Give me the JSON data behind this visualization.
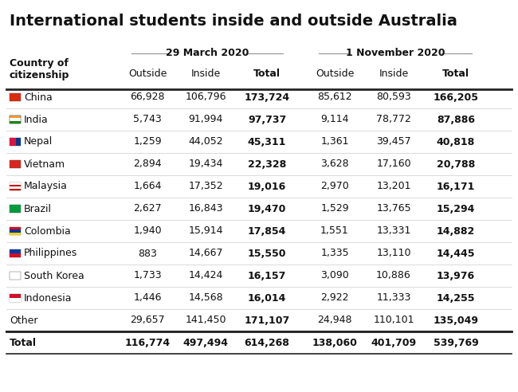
{
  "title": "International students inside and outside Australia",
  "rows": [
    {
      "country": "China",
      "has_flag": true,
      "m1_out": "66,928",
      "m1_in": "106,796",
      "m1_tot": "173,724",
      "m2_out": "85,612",
      "m2_in": "80,593",
      "m2_tot": "166,205"
    },
    {
      "country": "India",
      "has_flag": true,
      "m1_out": "5,743",
      "m1_in": "91,994",
      "m1_tot": "97,737",
      "m2_out": "9,114",
      "m2_in": "78,772",
      "m2_tot": "87,886"
    },
    {
      "country": "Nepal",
      "has_flag": true,
      "m1_out": "1,259",
      "m1_in": "44,052",
      "m1_tot": "45,311",
      "m2_out": "1,361",
      "m2_in": "39,457",
      "m2_tot": "40,818"
    },
    {
      "country": "Vietnam",
      "has_flag": true,
      "m1_out": "2,894",
      "m1_in": "19,434",
      "m1_tot": "22,328",
      "m2_out": "3,628",
      "m2_in": "17,160",
      "m2_tot": "20,788"
    },
    {
      "country": "Malaysia",
      "has_flag": true,
      "m1_out": "1,664",
      "m1_in": "17,352",
      "m1_tot": "19,016",
      "m2_out": "2,970",
      "m2_in": "13,201",
      "m2_tot": "16,171"
    },
    {
      "country": "Brazil",
      "has_flag": true,
      "m1_out": "2,627",
      "m1_in": "16,843",
      "m1_tot": "19,470",
      "m2_out": "1,529",
      "m2_in": "13,765",
      "m2_tot": "15,294"
    },
    {
      "country": "Colombia",
      "has_flag": true,
      "m1_out": "1,940",
      "m1_in": "15,914",
      "m1_tot": "17,854",
      "m2_out": "1,551",
      "m2_in": "13,331",
      "m2_tot": "14,882"
    },
    {
      "country": "Philippines",
      "has_flag": true,
      "m1_out": "883",
      "m1_in": "14,667",
      "m1_tot": "15,550",
      "m2_out": "1,335",
      "m2_in": "13,110",
      "m2_tot": "14,445"
    },
    {
      "country": "South Korea",
      "has_flag": true,
      "m1_out": "1,733",
      "m1_in": "14,424",
      "m1_tot": "16,157",
      "m2_out": "3,090",
      "m2_in": "10,886",
      "m2_tot": "13,976"
    },
    {
      "country": "Indonesia",
      "has_flag": true,
      "m1_out": "1,446",
      "m1_in": "14,568",
      "m1_tot": "16,014",
      "m2_out": "2,922",
      "m2_in": "11,333",
      "m2_tot": "14,255"
    },
    {
      "country": "Other",
      "has_flag": false,
      "m1_out": "29,657",
      "m1_in": "141,450",
      "m1_tot": "171,107",
      "m2_out": "24,948",
      "m2_in": "110,101",
      "m2_tot": "135,049"
    },
    {
      "country": "Total",
      "has_flag": false,
      "m1_out": "116,774",
      "m1_in": "497,494",
      "m1_tot": "614,268",
      "m2_out": "138,060",
      "m2_in": "401,709",
      "m2_tot": "539,769"
    }
  ],
  "flag_colors": {
    "China": [
      [
        "#DE2910",
        "#DE2910"
      ],
      [
        "#DE2910",
        "#DE2910"
      ]
    ],
    "India": [
      [
        "#FF9933",
        "#FFFFFF"
      ],
      [
        "#FFFFFF",
        "#138808"
      ]
    ],
    "Nepal": [
      [
        "#003893",
        "#003893"
      ],
      [
        "#DC143C",
        "#DC143C"
      ]
    ],
    "Vietnam": [
      [
        "#DA251D",
        "#DA251D"
      ],
      [
        "#DA251D",
        "#DA251D"
      ]
    ],
    "Malaysia": [
      [
        "#CC0001",
        "#CC0001"
      ],
      [
        "#006BB6",
        "#CC0001"
      ]
    ],
    "Brazil": [
      [
        "#009C3B",
        "#009C3B"
      ],
      [
        "#009C3B",
        "#009C3B"
      ]
    ],
    "Colombia": [
      [
        "#FCD116",
        "#003893"
      ],
      [
        "#CE1126",
        "#CE1126"
      ]
    ],
    "Philippines": [
      [
        "#0038A8",
        "#CE1126"
      ],
      [
        "#0038A8",
        "#CE1126"
      ]
    ],
    "South Korea": [
      [
        "#FFFFFF",
        "#FFFFFF"
      ],
      [
        "#FFFFFF",
        "#FFFFFF"
      ]
    ],
    "Indonesia": [
      [
        "#CE1126",
        "#CE1126"
      ],
      [
        "#FFFFFF",
        "#FFFFFF"
      ]
    ]
  },
  "flag_main_colors": {
    "China": "#DE2910",
    "India": "#FF9933",
    "Nepal": "#003893",
    "Vietnam": "#DA251D",
    "Malaysia": "#CC0001",
    "Brazil": "#009C3B",
    "Colombia": "#FCD116",
    "Philippines": "#0038A8",
    "South Korea": "#FFFFFF",
    "Indonesia": "#CE1126"
  },
  "bg_color": "#ffffff",
  "text_color": "#111111",
  "title_fontsize": 14,
  "cell_fontsize": 9,
  "header_fontsize": 9
}
